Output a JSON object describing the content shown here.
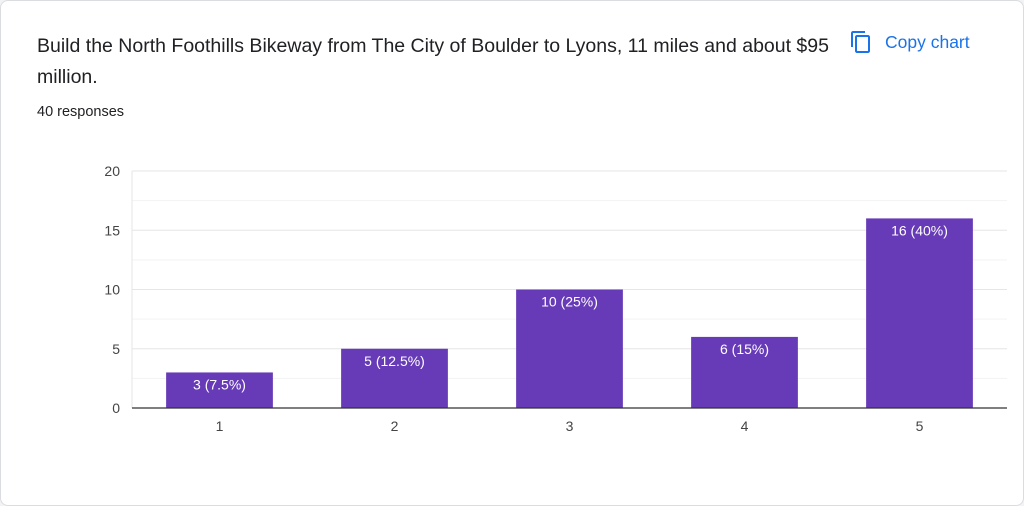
{
  "question": {
    "title": "Build the North Foothills Bikeway from The City of Boulder to Lyons, 11 miles and about $95 million.",
    "responses_label": "40 responses"
  },
  "toolbar": {
    "copy_label": "Copy chart",
    "copy_icon": "copy-icon"
  },
  "colors": {
    "bar": "#673ab7",
    "accent": "#1a73e8",
    "gridline": "#e6e6e6",
    "axis": "#333333"
  },
  "chart_data": {
    "type": "bar",
    "categories": [
      "1",
      "2",
      "3",
      "4",
      "5"
    ],
    "values": [
      3,
      5,
      10,
      6,
      16
    ],
    "data_labels": [
      "3 (7.5%)",
      "5 (12.5%)",
      "10 (25%)",
      "6 (15%)",
      "16 (40%)"
    ],
    "ylim": [
      0,
      20
    ],
    "yticks": [
      0,
      5,
      10,
      15,
      20
    ],
    "grid": true,
    "legend": "none"
  }
}
